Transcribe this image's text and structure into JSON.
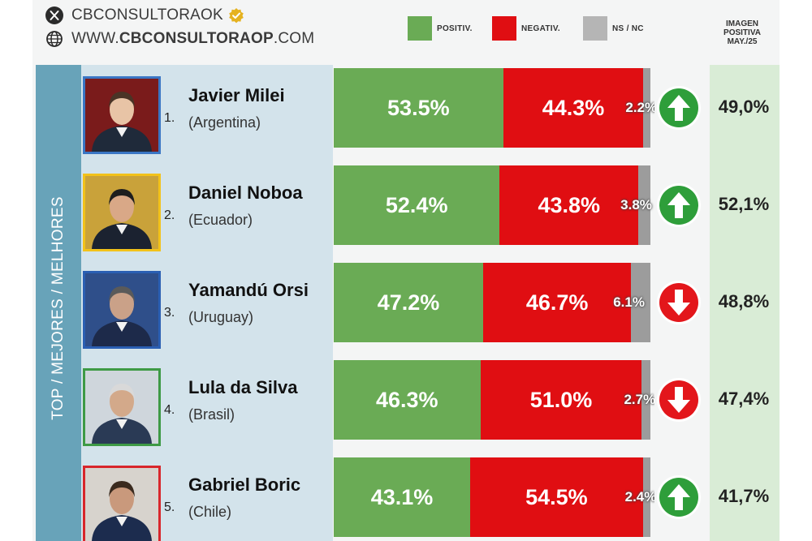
{
  "header": {
    "x_handle": "CBCONSULTORAOK",
    "website_prefix": "WWW.",
    "website_bold": "CBCONSULTORAOP",
    "website_suffix": ".COM"
  },
  "legend": [
    {
      "label": "POSITIV.",
      "color": "#6aab55"
    },
    {
      "label": "NEGATIV.",
      "color": "#e00e12"
    },
    {
      "label": "NS / NC",
      "color": "#b5b5b5"
    }
  ],
  "side_label": "TOP / MEJORES / MELHORES",
  "imagen_header": [
    "IMAGEN",
    "POSITIVA",
    "MAY./25"
  ],
  "chart_data": {
    "type": "bar",
    "stacked": true,
    "orientation": "horizontal",
    "categories": [
      "Javier Milei",
      "Daniel Noboa",
      "Yamandú Orsi",
      "Lula da Silva",
      "Gabriel Boric"
    ],
    "series": [
      {
        "name": "POSITIV.",
        "color": "#6aab55",
        "values": [
          53.5,
          52.4,
          47.2,
          46.3,
          43.1
        ]
      },
      {
        "name": "NEGATIV.",
        "color": "#e00e12",
        "values": [
          44.3,
          43.8,
          46.7,
          51.0,
          54.5
        ]
      },
      {
        "name": "NS / NC",
        "color": "#9c9c9c",
        "values": [
          2.2,
          3.8,
          6.1,
          2.7,
          2.4
        ]
      }
    ]
  },
  "rows": [
    {
      "rank": "1.",
      "name": "Javier Milei",
      "country": "(Argentina)",
      "pos_label": "53.5%",
      "neg_label": "44.3%",
      "ns_label": "2.2%",
      "trend": "up",
      "trend_icon": "arrow-up-icon",
      "imagen": "49,0%",
      "frame_color": "#3a76c4"
    },
    {
      "rank": "2.",
      "name": "Daniel Noboa",
      "country": "(Ecuador)",
      "pos_label": "52.4%",
      "neg_label": "43.8%",
      "ns_label": "3.8%",
      "trend": "up",
      "trend_icon": "arrow-up-icon",
      "imagen": "52,1%",
      "frame_color": "#f2c21a"
    },
    {
      "rank": "3.",
      "name": "Yamandú Orsi",
      "country": "(Uruguay)",
      "pos_label": "47.2%",
      "neg_label": "46.7%",
      "ns_label": "6.1%",
      "trend": "down",
      "trend_icon": "arrow-down-icon",
      "imagen": "48,8%",
      "frame_color": "#2a5fb3"
    },
    {
      "rank": "4.",
      "name": "Lula da Silva",
      "country": "(Brasil)",
      "pos_label": "46.3%",
      "neg_label": "51.0%",
      "ns_label": "2.7%",
      "trend": "down",
      "trend_icon": "arrow-down-icon",
      "imagen": "47,4%",
      "frame_color": "#3e9a45"
    },
    {
      "rank": "5.",
      "name": "Gabriel Boric",
      "country": "(Chile)",
      "pos_label": "43.1%",
      "neg_label": "54.5%",
      "ns_label": "2.4%",
      "trend": "up",
      "trend_icon": "arrow-up-icon",
      "imagen": "41,7%",
      "frame_color": "#d8262b"
    }
  ]
}
